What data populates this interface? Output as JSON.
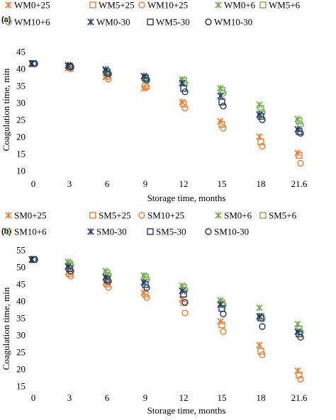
{
  "chart_data": [
    {
      "type": "scatter",
      "panel_label": "(a)",
      "xlabel": "Storage time, months",
      "ylabel": "Coagulation time, min",
      "categories": [
        "0",
        "3",
        "6",
        "9",
        "12",
        "15",
        "18",
        "21.6"
      ],
      "ylim": [
        10,
        45
      ],
      "yticks": [
        10,
        15,
        20,
        25,
        30,
        35,
        40,
        45
      ],
      "grid": false,
      "legend_position": "top",
      "series": [
        {
          "name": "WM0+25",
          "marker": "asterisk",
          "color": "#ED7D31",
          "values": [
            41.5,
            40.2,
            37.5,
            34.2,
            30.2,
            24.5,
            20.0,
            15.2
          ]
        },
        {
          "name": "WM5+25",
          "marker": "square",
          "color": "#ED7D31",
          "values": [
            41.5,
            40.4,
            37.8,
            35.0,
            29.6,
            23.6,
            18.5,
            14.5
          ]
        },
        {
          "name": "WM10+25",
          "marker": "circle",
          "color": "#ED7D31",
          "values": [
            41.5,
            40.0,
            36.9,
            34.6,
            28.4,
            22.5,
            17.2,
            12.2
          ]
        },
        {
          "name": "WM0+6",
          "marker": "asterisk",
          "color": "#70AD47",
          "values": [
            41.5,
            41.0,
            39.5,
            37.9,
            36.8,
            34.3,
            29.4,
            25.2
          ]
        },
        {
          "name": "WM5+6",
          "marker": "square",
          "color": "#70AD47",
          "values": [
            41.5,
            40.8,
            39.1,
            37.5,
            36.5,
            33.6,
            28.3,
            24.6
          ]
        },
        {
          "name": "WM10+6",
          "marker": "circle",
          "color": "#70AD47",
          "values": [
            41.5,
            40.7,
            38.6,
            37.0,
            35.7,
            32.8,
            27.2,
            23.5
          ]
        },
        {
          "name": "WM0-30",
          "marker": "asterisk",
          "color": "#203864",
          "values": [
            41.5,
            41.0,
            39.8,
            37.8,
            35.8,
            32.0,
            26.5,
            22.2
          ]
        },
        {
          "name": "WM5-30",
          "marker": "square",
          "color": "#203864",
          "values": [
            41.5,
            40.7,
            39.0,
            37.2,
            34.2,
            30.2,
            26.0,
            21.5
          ]
        },
        {
          "name": "WM10-30",
          "marker": "circle",
          "color": "#203864",
          "values": [
            41.5,
            40.5,
            38.4,
            36.6,
            33.2,
            29.0,
            25.0,
            21.0
          ]
        }
      ]
    },
    {
      "type": "scatter",
      "panel_label": "(b)",
      "xlabel": "Storage time, months",
      "ylabel": "Coagulation time, min",
      "categories": [
        "0",
        "3",
        "6",
        "9",
        "12",
        "15",
        "18",
        "21.6"
      ],
      "ylim": [
        15,
        55
      ],
      "yticks": [
        15,
        20,
        25,
        30,
        35,
        40,
        45,
        50,
        55
      ],
      "grid": false,
      "legend_position": "top",
      "series": [
        {
          "name": "SM0+25",
          "marker": "asterisk",
          "color": "#ED7D31",
          "values": [
            52.2,
            48.5,
            45.5,
            42.5,
            40.5,
            34.0,
            27.0,
            19.5
          ]
        },
        {
          "name": "SM5+25",
          "marker": "square",
          "color": "#ED7D31",
          "values": [
            52.2,
            48.0,
            45.0,
            42.0,
            39.5,
            33.0,
            25.2,
            18.2
          ]
        },
        {
          "name": "SM10+25",
          "marker": "circle",
          "color": "#ED7D31",
          "values": [
            52.2,
            47.3,
            44.0,
            41.0,
            36.5,
            31.0,
            24.2,
            17.0
          ]
        },
        {
          "name": "SM0+6",
          "marker": "asterisk",
          "color": "#70AD47",
          "values": [
            52.2,
            51.5,
            48.8,
            47.5,
            44.5,
            40.2,
            38.0,
            33.2
          ]
        },
        {
          "name": "SM5+6",
          "marker": "square",
          "color": "#70AD47",
          "values": [
            52.2,
            51.0,
            48.2,
            47.0,
            44.0,
            39.5,
            35.5,
            31.8
          ]
        },
        {
          "name": "SM10+6",
          "marker": "circle",
          "color": "#70AD47",
          "values": [
            52.2,
            50.6,
            47.6,
            46.4,
            43.3,
            38.8,
            34.8,
            30.8
          ]
        },
        {
          "name": "SM0-30",
          "marker": "asterisk",
          "color": "#203864",
          "values": [
            52.2,
            50.2,
            47.0,
            45.5,
            43.0,
            39.0,
            35.5,
            31.0
          ]
        },
        {
          "name": "SM5-30",
          "marker": "square",
          "color": "#203864",
          "values": [
            52.2,
            49.5,
            46.3,
            44.8,
            42.0,
            37.8,
            35.0,
            30.3
          ]
        },
        {
          "name": "SM10-30",
          "marker": "circle",
          "color": "#203864",
          "values": [
            52.2,
            48.8,
            45.8,
            43.9,
            39.6,
            36.2,
            32.5,
            29.3
          ]
        }
      ]
    }
  ]
}
